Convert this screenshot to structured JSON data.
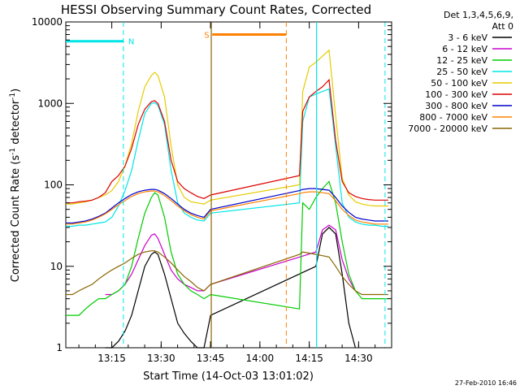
{
  "chart_data": {
    "type": "line",
    "title": "HESSI Observing Summary Count Rates, Corrected",
    "xlabel": "Start Time (14-Oct-03 13:01:02)",
    "ylabel_main": "Corrected Count Rate (s",
    "ylabel_sup1": "-1",
    "ylabel_mid": " detector",
    "ylabel_sup2": "-1",
    "ylabel_end": ")",
    "y_scale": "log",
    "ylim": [
      1,
      10000
    ],
    "xlim_minutes": [
      0,
      99
    ],
    "x_ticks": [
      {
        "label": "13:15",
        "minute": 13.97
      },
      {
        "label": "13:30",
        "minute": 28.97
      },
      {
        "label": "13:45",
        "minute": 43.97
      },
      {
        "label": "14:00",
        "minute": 58.97
      },
      {
        "label": "14:15",
        "minute": 73.97
      },
      {
        "label": "14:30",
        "minute": 88.97
      }
    ],
    "y_ticks": [
      {
        "label": "1",
        "value": 1
      },
      {
        "label": "10",
        "value": 10
      },
      {
        "label": "100",
        "value": 100
      },
      {
        "label": "1000",
        "value": 1000
      },
      {
        "label": "10000",
        "value": 10000
      }
    ],
    "legend_title_1": "Det 1,3,4,5,6,9,",
    "legend_title_2": "Att 0",
    "legend_placement": "right",
    "grid": false,
    "timestamp": "27-Feb-2010 16:46",
    "series": [
      {
        "name": "3 - 6 keV",
        "color": "#000000",
        "x": [
          12,
          14,
          16,
          18,
          20,
          22,
          24,
          26,
          27,
          28,
          30,
          32,
          34,
          36,
          38,
          40,
          42,
          44,
          76,
          78,
          80,
          82,
          84,
          86,
          88
        ],
        "y": [
          1,
          1,
          1.2,
          1.6,
          2.5,
          5,
          10,
          14,
          15,
          14,
          8,
          4,
          2,
          1.5,
          1.2,
          1,
          1,
          2.5,
          10,
          25,
          30,
          25,
          8,
          2,
          1
        ]
      },
      {
        "name": "6 - 12 keV",
        "color": "#cc00cc",
        "x": [
          12,
          14,
          16,
          18,
          20,
          22,
          24,
          26,
          27,
          28,
          30,
          32,
          34,
          36,
          38,
          40,
          42,
          44,
          76,
          78,
          80,
          82,
          84,
          86,
          88
        ],
        "y": [
          4.5,
          4.5,
          5,
          6,
          8,
          12,
          18,
          24,
          25,
          22,
          14,
          9,
          7,
          6,
          5.5,
          5,
          5,
          6,
          15,
          28,
          32,
          28,
          12,
          7,
          5
        ]
      },
      {
        "name": "12 - 25 keV",
        "color": "#00cc00",
        "x": [
          0,
          2,
          4,
          6,
          8,
          10,
          12,
          14,
          16,
          18,
          20,
          22,
          24,
          26,
          27,
          28,
          30,
          32,
          34,
          36,
          38,
          40,
          42,
          44,
          71,
          72,
          74,
          76,
          78,
          80,
          82,
          84,
          86,
          88,
          90,
          92,
          94,
          96,
          98
        ],
        "y": [
          2.5,
          2.5,
          2.5,
          3,
          3.5,
          4,
          4,
          4.5,
          5,
          6,
          10,
          22,
          45,
          70,
          80,
          75,
          40,
          15,
          8,
          6,
          5,
          4.5,
          4,
          4.5,
          3,
          60,
          50,
          70,
          90,
          110,
          60,
          20,
          8,
          5,
          4,
          4,
          4,
          4,
          4
        ]
      },
      {
        "name": "25 - 50 keV",
        "color": "#00e5e5",
        "x": [
          0,
          2,
          4,
          6,
          8,
          10,
          12,
          14,
          16,
          18,
          20,
          22,
          24,
          26,
          27,
          28,
          30,
          32,
          34,
          36,
          38,
          40,
          42,
          44,
          71,
          72,
          74,
          76,
          78,
          80,
          82,
          84,
          86,
          88,
          90,
          92,
          94,
          96,
          98
        ],
        "y": [
          31,
          31,
          32,
          32,
          33,
          34,
          35,
          40,
          55,
          85,
          150,
          350,
          750,
          1000,
          1020,
          950,
          550,
          150,
          60,
          45,
          40,
          37,
          36,
          45,
          60,
          600,
          1200,
          1300,
          1400,
          1500,
          300,
          60,
          40,
          35,
          33,
          32,
          32,
          31,
          31
        ]
      },
      {
        "name": "50 - 100 keV",
        "color": "#e5cc00",
        "x": [
          0,
          2,
          4,
          6,
          8,
          10,
          12,
          14,
          16,
          18,
          20,
          22,
          24,
          26,
          27,
          28,
          30,
          32,
          34,
          36,
          38,
          40,
          42,
          44,
          71,
          72,
          74,
          76,
          78,
          80,
          82,
          84,
          86,
          88,
          90,
          92,
          94,
          96,
          98
        ],
        "y": [
          58,
          58,
          60,
          62,
          65,
          70,
          75,
          85,
          110,
          170,
          320,
          800,
          1600,
          2200,
          2400,
          2200,
          1200,
          300,
          100,
          70,
          62,
          60,
          58,
          65,
          100,
          1400,
          2800,
          3200,
          3800,
          4500,
          700,
          120,
          75,
          62,
          58,
          56,
          55,
          55,
          55
        ]
      },
      {
        "name": "100 - 300 keV",
        "color": "#dd0000",
        "x": [
          0,
          2,
          4,
          6,
          8,
          10,
          12,
          14,
          16,
          18,
          20,
          22,
          24,
          26,
          27,
          28,
          30,
          32,
          34,
          36,
          38,
          40,
          42,
          44,
          71,
          72,
          74,
          76,
          78,
          80,
          82,
          84,
          86,
          88,
          90,
          92,
          94,
          96,
          98
        ],
        "y": [
          60,
          60,
          62,
          63,
          65,
          70,
          80,
          110,
          130,
          170,
          280,
          550,
          850,
          1050,
          1080,
          1000,
          600,
          200,
          110,
          90,
          80,
          72,
          68,
          75,
          130,
          800,
          1200,
          1400,
          1600,
          1950,
          350,
          110,
          80,
          72,
          68,
          66,
          65,
          65,
          65
        ]
      },
      {
        "name": "300 - 800 keV",
        "color": "#0000cc",
        "x": [
          0,
          2,
          4,
          6,
          8,
          10,
          12,
          14,
          16,
          18,
          20,
          22,
          24,
          26,
          27,
          28,
          30,
          32,
          34,
          36,
          38,
          40,
          42,
          44,
          71,
          72,
          74,
          76,
          78,
          80,
          82,
          84,
          86,
          88,
          90,
          92,
          94,
          96,
          98
        ],
        "y": [
          34,
          34,
          35,
          36,
          38,
          41,
          45,
          52,
          60,
          68,
          76,
          82,
          86,
          88,
          88,
          86,
          78,
          68,
          58,
          50,
          45,
          42,
          40,
          50,
          85,
          88,
          90,
          90,
          88,
          86,
          70,
          55,
          46,
          40,
          38,
          37,
          36,
          36,
          36
        ]
      },
      {
        "name": "800 - 7000 keV",
        "color": "#ff8000",
        "x": [
          0,
          2,
          4,
          6,
          8,
          10,
          12,
          14,
          16,
          18,
          20,
          22,
          24,
          26,
          27,
          28,
          30,
          32,
          34,
          36,
          38,
          40,
          42,
          44,
          71,
          72,
          74,
          76,
          78,
          80,
          82,
          84,
          86,
          88,
          90,
          92,
          94,
          96,
          98
        ],
        "y": [
          33,
          33,
          34,
          35,
          37,
          40,
          44,
          50,
          57,
          64,
          72,
          78,
          82,
          84,
          84,
          82,
          74,
          64,
          55,
          48,
          43,
          40,
          38,
          48,
          78,
          80,
          82,
          82,
          80,
          78,
          64,
          50,
          42,
          37,
          35,
          34,
          33,
          33,
          33
        ]
      },
      {
        "name": "7000 - 20000 keV",
        "color": "#886600",
        "x": [
          0,
          2,
          4,
          6,
          8,
          10,
          12,
          14,
          16,
          18,
          20,
          22,
          24,
          26,
          27,
          28,
          30,
          32,
          34,
          36,
          38,
          40,
          42,
          44,
          71,
          72,
          74,
          76,
          78,
          80,
          82,
          84,
          86,
          88,
          90,
          92,
          94,
          96,
          98
        ],
        "y": [
          4.5,
          4.5,
          5,
          5.5,
          6,
          7,
          8,
          9,
          10,
          11,
          12.5,
          14,
          15,
          15.5,
          15.5,
          15,
          13,
          11,
          9,
          7.5,
          6.5,
          5.5,
          5,
          6,
          14,
          15,
          14.5,
          14,
          13.5,
          13,
          10,
          7.5,
          6,
          5,
          4.5,
          4.5,
          4.5,
          4.5,
          4.5
        ]
      }
    ],
    "annotations": [
      {
        "label": "N",
        "color": "#00e5e5",
        "bar": [
          0,
          17.5
        ],
        "bar_level": 5800,
        "dashes": [
          17.5,
          97
        ],
        "solid": [
          76.2
        ]
      },
      {
        "label": "S",
        "color": "#ff8000",
        "bar": [
          44.5,
          67
        ],
        "bar_level": 7000,
        "dashes": [
          67
        ]
      },
      {
        "label": "",
        "color": "#886600",
        "solid": [
          44.2
        ]
      }
    ]
  }
}
